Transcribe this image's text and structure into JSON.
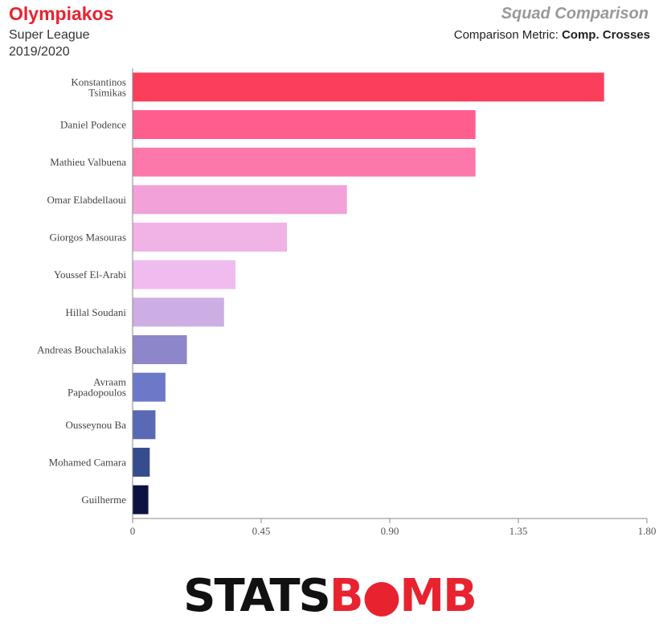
{
  "header": {
    "team": "Olympiakos",
    "league": "Super League",
    "season": "2019/2020",
    "title": "Squad Comparison",
    "metric_prefix": "Comparison Metric: ",
    "metric": "Comp. Crosses"
  },
  "logo": {
    "part1": "STATS",
    "part2": "B",
    "part3": "MB",
    "color_dark": "#111111",
    "color_red": "#e8232f"
  },
  "chart_data": {
    "type": "bar",
    "orientation": "horizontal",
    "title": "",
    "xlabel": "",
    "ylabel": "",
    "xlim": [
      0,
      1.8
    ],
    "xticks": [
      "0",
      "0.45",
      "0.90",
      "1.35",
      "1.80"
    ],
    "grid": false,
    "categories": [
      [
        "Konstantinos",
        "Tsimikas"
      ],
      [
        "Daniel Podence"
      ],
      [
        "Mathieu Valbuena"
      ],
      [
        "Omar Elabdellaoui"
      ],
      [
        "Giorgos Masouras"
      ],
      [
        "Youssef El-Arabi"
      ],
      [
        "Hillal Soudani"
      ],
      [
        "Andreas Bouchalakis"
      ],
      [
        "Avraam",
        "Papadopoulos"
      ],
      [
        "Ousseynou Ba"
      ],
      [
        "Mohamed Camara"
      ],
      [
        "Guilherme"
      ]
    ],
    "values": [
      1.65,
      1.2,
      1.2,
      0.75,
      0.54,
      0.36,
      0.32,
      0.19,
      0.115,
      0.08,
      0.06,
      0.055
    ],
    "colors": [
      "#fb3e5c",
      "#fd5e8e",
      "#fd78aa",
      "#f2a2d8",
      "#f1b2e6",
      "#f0bcef",
      "#cdaee4",
      "#8e86ca",
      "#6d79c8",
      "#5969b4",
      "#354d8d",
      "#0c1340"
    ]
  }
}
